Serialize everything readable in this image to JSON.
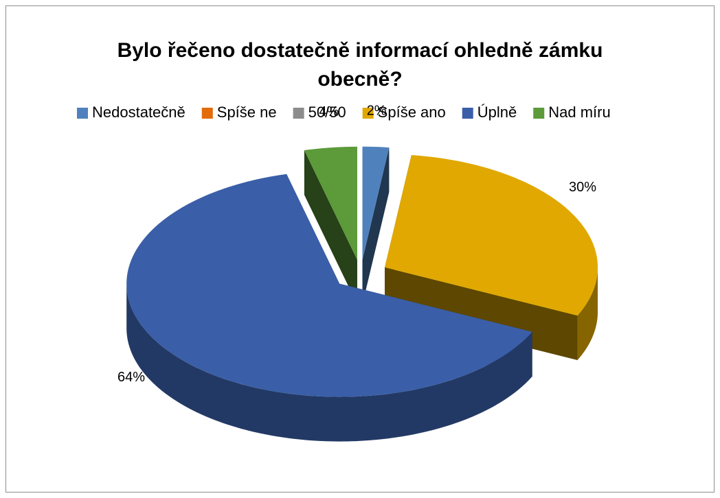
{
  "chart_data": {
    "type": "pie3d",
    "title": [
      "Bylo řečeno dostatečně informací ohledně zámku",
      "obecně?"
    ],
    "categories": [
      "Nedostatečně",
      "Spíše ne",
      "50/50",
      "Spíše ano",
      "Úplně",
      "Nad míru"
    ],
    "values": [
      2,
      0,
      0,
      30,
      64,
      4
    ],
    "value_labels": [
      "2%",
      null,
      null,
      "30%",
      "64%",
      "4%"
    ],
    "colors": [
      "#4f81bd",
      "#e36c09",
      "#8c8c8c",
      "#e0a800",
      "#3a5fa8",
      "#5c9a3a"
    ],
    "legend": "top"
  }
}
